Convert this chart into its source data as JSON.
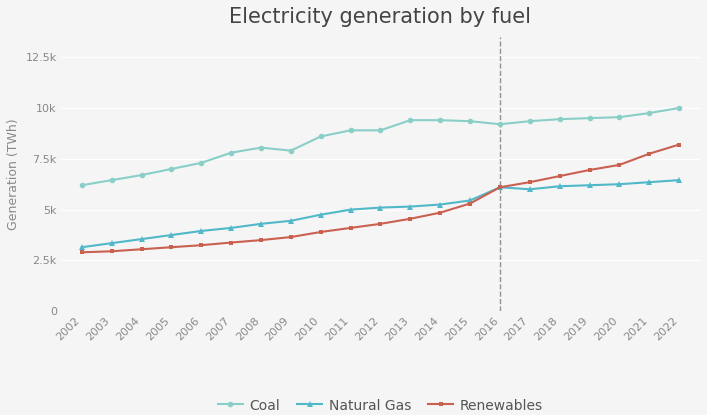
{
  "title": "Electricity generation by fuel",
  "ylabel": "Generation (TWh)",
  "years": [
    2002,
    2003,
    2004,
    2005,
    2006,
    2007,
    2008,
    2009,
    2010,
    2011,
    2012,
    2013,
    2014,
    2015,
    2016,
    2017,
    2018,
    2019,
    2020,
    2021,
    2022
  ],
  "coal": [
    6200,
    6450,
    6700,
    7000,
    7300,
    7800,
    8050,
    7900,
    8600,
    8900,
    8900,
    9400,
    9400,
    9350,
    9200,
    9350,
    9450,
    9500,
    9550,
    9750,
    10000
  ],
  "natural_gas": [
    3150,
    3350,
    3550,
    3750,
    3950,
    4100,
    4300,
    4450,
    4750,
    5000,
    5100,
    5150,
    5250,
    5450,
    6100,
    6000,
    6150,
    6200,
    6250,
    6350,
    6450
  ],
  "renewables": [
    2900,
    2950,
    3050,
    3150,
    3250,
    3380,
    3500,
    3650,
    3900,
    4100,
    4300,
    4550,
    4850,
    5300,
    6100,
    6350,
    6650,
    6950,
    7200,
    7750,
    8200
  ],
  "coal_color": "#89cfc8",
  "gas_color": "#50b8c8",
  "renewables_color": "#c96050",
  "vline_x": 2016,
  "vline_color": "#888888",
  "ylim": [
    0,
    13500
  ],
  "yticks": [
    0,
    2500,
    5000,
    7500,
    10000,
    12500
  ],
  "ytick_labels": [
    "0",
    "2.5k",
    "5k",
    "7.5k",
    "10k",
    "12.5k"
  ],
  "bg_color": "#f5f5f5",
  "legend_labels": [
    "Coal",
    "Natural Gas",
    "Renewables"
  ],
  "title_fontsize": 15,
  "axis_label_fontsize": 9,
  "tick_fontsize": 8,
  "legend_fontsize": 10
}
